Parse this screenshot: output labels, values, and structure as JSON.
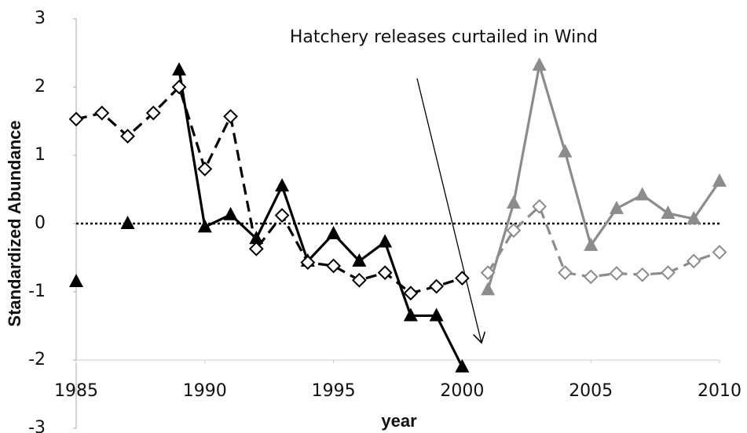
{
  "chart_data": {
    "type": "line",
    "annotation": "Hatchery releases curtailed in Wind",
    "x_label": "year",
    "y_label": "Standardized Abundance",
    "x": [
      1985,
      1986,
      1987,
      1988,
      1989,
      1990,
      1991,
      1992,
      1993,
      1994,
      1995,
      1996,
      1997,
      1998,
      1999,
      2000,
      2001,
      2002,
      2003,
      2004,
      2005,
      2006,
      2007,
      2008,
      2009,
      2010
    ],
    "series": [
      {
        "color": "#000000",
        "dash": false,
        "marker": "triangle",
        "values": [
          -0.85,
          null,
          0.0,
          null,
          2.25,
          -0.05,
          0.13,
          -0.22,
          0.55,
          -0.55,
          -0.15,
          -0.55,
          -0.27,
          -1.35,
          -1.35,
          -2.1,
          null,
          null,
          null,
          null,
          null,
          null,
          null,
          null,
          null,
          null
        ]
      },
      {
        "color": "#000000",
        "dash": true,
        "marker": "diamond",
        "values": [
          1.53,
          1.62,
          1.28,
          1.62,
          2.0,
          0.8,
          1.57,
          -0.37,
          0.12,
          -0.57,
          -0.62,
          -0.83,
          -0.72,
          -1.02,
          -0.92,
          -0.8,
          null,
          null,
          null,
          null,
          null,
          null,
          null,
          null,
          null,
          null
        ]
      },
      {
        "color": "#8c8c8c",
        "dash": false,
        "marker": "triangle",
        "values": [
          null,
          null,
          null,
          null,
          null,
          null,
          null,
          null,
          null,
          null,
          null,
          null,
          null,
          null,
          null,
          null,
          -0.97,
          0.3,
          2.32,
          1.05,
          -0.32,
          0.22,
          0.42,
          0.15,
          0.07,
          0.62
        ]
      },
      {
        "color": "#8c8c8c",
        "dash": true,
        "marker": "diamond",
        "values": [
          null,
          null,
          null,
          null,
          null,
          null,
          null,
          null,
          null,
          null,
          null,
          null,
          null,
          null,
          null,
          null,
          -0.72,
          -0.1,
          0.25,
          -0.72,
          -0.78,
          -0.73,
          -0.75,
          -0.72,
          -0.55,
          -0.42
        ]
      }
    ],
    "xlim": [
      1985,
      2010
    ],
    "xticks": [
      1985,
      1990,
      1995,
      2000,
      2005,
      2010
    ],
    "ylim": [
      -3,
      3
    ],
    "yticks": [
      -3,
      -2,
      -1,
      0,
      1,
      2,
      3
    ],
    "x_axis_crossing": -2,
    "reference_line": 0,
    "grid": false
  }
}
